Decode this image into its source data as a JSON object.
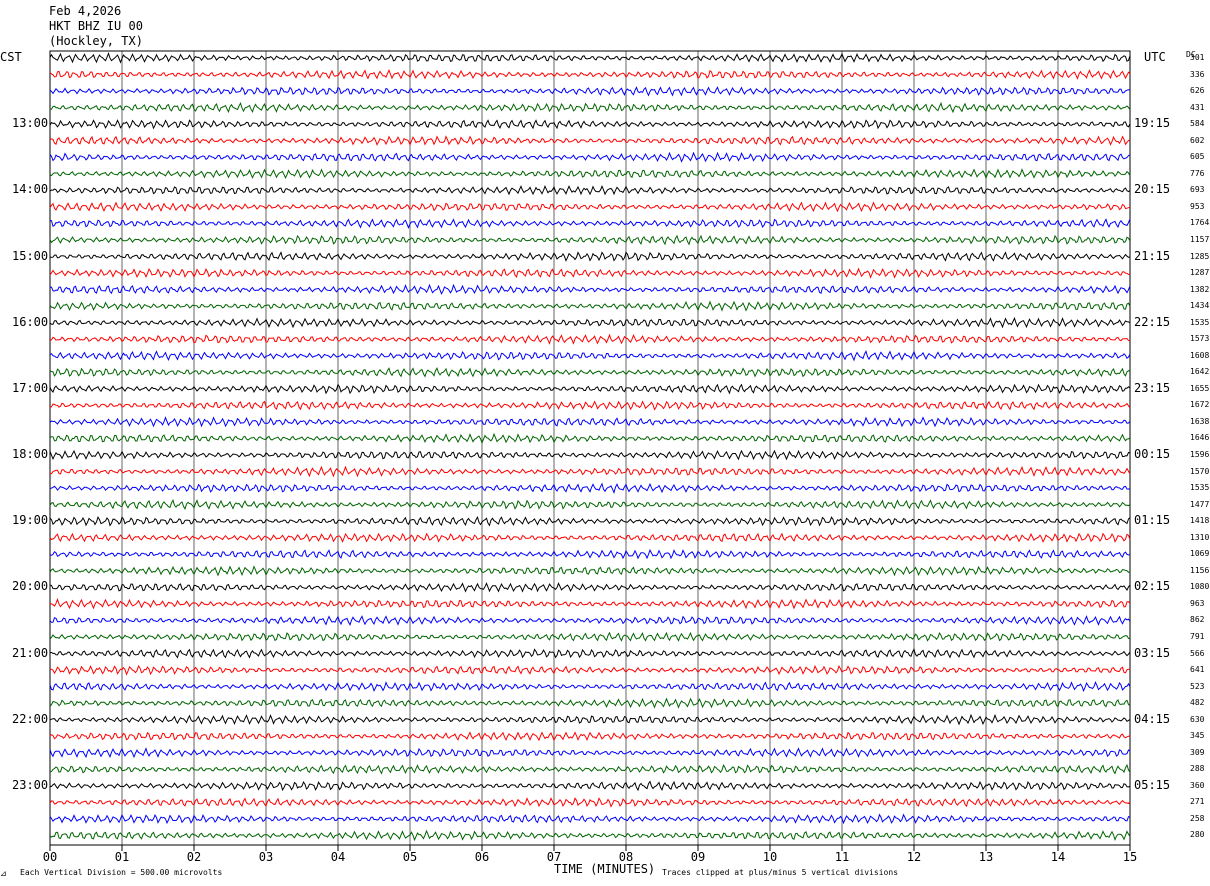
{
  "header": {
    "date": "Feb 4,2026",
    "station": "HKT BHZ IU 00",
    "location": "(Hockley, TX)"
  },
  "left_tz": "CST",
  "right_tz": "UTC",
  "dc_label": "DC",
  "colors": {
    "cycle": [
      "#000000",
      "#ff0000",
      "#0000ff",
      "#006400"
    ],
    "grid": "#000000"
  },
  "chart_data": {
    "type": "line",
    "xlabel": "TIME (MINUTES)",
    "xlim": [
      0,
      15
    ],
    "x_ticks": [
      "00",
      "01",
      "02",
      "03",
      "04",
      "05",
      "06",
      "07",
      "08",
      "09",
      "10",
      "11",
      "12",
      "13",
      "14",
      "15"
    ],
    "rows": 48,
    "left_hour_labels": [
      "13:00",
      "14:00",
      "15:00",
      "16:00",
      "17:00",
      "18:00",
      "19:00",
      "20:00",
      "21:00",
      "22:00",
      "23:00"
    ],
    "right_hour_labels": [
      "19:15",
      "20:15",
      "21:15",
      "22:15",
      "23:15",
      "00:15",
      "01:15",
      "02:15",
      "03:15",
      "04:15",
      "05:15"
    ],
    "dc_offsets": [
      "301",
      "336",
      "626",
      "431",
      "584",
      "602",
      "605",
      "776",
      "693",
      "953",
      "1764",
      "1157",
      "1285",
      "1287",
      "1382",
      "1434",
      "1535",
      "1573",
      "1608",
      "1642",
      "1655",
      "1672",
      "1638",
      "1646",
      "1596",
      "1570",
      "1535",
      "1477",
      "1418",
      "1310",
      "1069",
      "1156",
      "1080",
      "963",
      "862",
      "791",
      "566",
      "641",
      "523",
      "482",
      "630",
      "345",
      "309",
      "288",
      "360",
      "271",
      "258",
      "280"
    ],
    "scale_note": "Each Vertical Division =  500.00 microvolts",
    "clip_note": "Traces clipped at plus/minus 5 vertical divisions"
  }
}
